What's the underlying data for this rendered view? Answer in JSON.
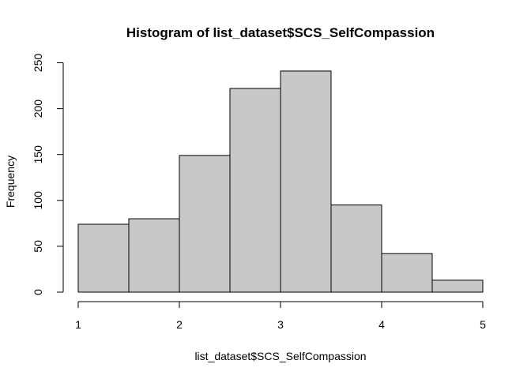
{
  "chart_data": {
    "type": "bar",
    "title": "Histogram of list_dataset$SCS_SelfCompassion",
    "xlabel": "list_dataset$SCS_SelfCompassion",
    "ylabel": "Frequency",
    "bins": [
      {
        "start": 1.0,
        "end": 1.5,
        "count": 74
      },
      {
        "start": 1.5,
        "end": 2.0,
        "count": 80
      },
      {
        "start": 2.0,
        "end": 2.5,
        "count": 149
      },
      {
        "start": 2.5,
        "end": 3.0,
        "count": 222
      },
      {
        "start": 3.0,
        "end": 3.5,
        "count": 241
      },
      {
        "start": 3.5,
        "end": 4.0,
        "count": 95
      },
      {
        "start": 4.0,
        "end": 4.5,
        "count": 42
      },
      {
        "start": 4.5,
        "end": 5.0,
        "count": 13
      }
    ],
    "xlim": [
      1,
      5
    ],
    "ylim": [
      0,
      250
    ],
    "x_ticks": [
      "1",
      "2",
      "3",
      "4",
      "5"
    ],
    "y_ticks": [
      "0",
      "50",
      "100",
      "150",
      "200",
      "250"
    ],
    "grid": false,
    "colors": {
      "bar_fill": "#c8c8c8",
      "bar_stroke": "#000000"
    }
  }
}
